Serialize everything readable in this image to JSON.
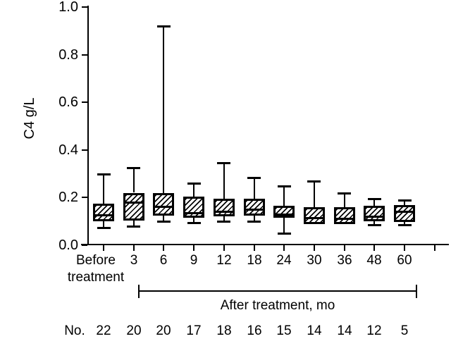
{
  "figure": {
    "background": "#ffffff",
    "ink_color": "#000000"
  },
  "chart_data": {
    "type": "boxplot",
    "title": "",
    "xlabel": "",
    "ylabel": "C4 g/L",
    "ylim": [
      0.0,
      1.0
    ],
    "yticks": [
      0.0,
      0.2,
      0.4,
      0.6,
      0.8,
      1.0
    ],
    "ytick_decimals": 1,
    "grid": false,
    "box_fill": "diagonal-hatch",
    "categories": [
      [
        "Before",
        "treatment"
      ],
      [
        "3"
      ],
      [
        "6"
      ],
      [
        "9"
      ],
      [
        "12"
      ],
      [
        "18"
      ],
      [
        "24"
      ],
      [
        "30"
      ],
      [
        "36"
      ],
      [
        "48"
      ],
      [
        "60"
      ]
    ],
    "x_axis": {
      "extra_end_tick": true
    },
    "group_bracket": {
      "label": "After treatment, mo",
      "from_category_index": 1,
      "to_category_index": 10
    },
    "counts": {
      "label": "No.",
      "values": [
        22,
        20,
        20,
        17,
        18,
        16,
        15,
        14,
        14,
        12,
        5
      ]
    },
    "boxes": [
      {
        "label": "Before treatment",
        "n": 22,
        "whisker_low": 0.075,
        "q1": 0.1,
        "median": 0.125,
        "q3": 0.175,
        "whisker_high": 0.3
      },
      {
        "label": "3",
        "n": 20,
        "whisker_low": 0.08,
        "q1": 0.105,
        "median": 0.18,
        "q3": 0.22,
        "whisker_high": 0.325
      },
      {
        "label": "6",
        "n": 20,
        "whisker_low": 0.1,
        "q1": 0.125,
        "median": 0.16,
        "q3": 0.22,
        "whisker_high": 0.92
      },
      {
        "label": "9",
        "n": 17,
        "whisker_low": 0.095,
        "q1": 0.115,
        "median": 0.135,
        "q3": 0.205,
        "whisker_high": 0.26
      },
      {
        "label": "12",
        "n": 18,
        "whisker_low": 0.1,
        "q1": 0.12,
        "median": 0.14,
        "q3": 0.195,
        "whisker_high": 0.345
      },
      {
        "label": "18",
        "n": 16,
        "whisker_low": 0.1,
        "q1": 0.125,
        "median": 0.15,
        "q3": 0.195,
        "whisker_high": 0.285
      },
      {
        "label": "24",
        "n": 15,
        "whisker_low": 0.05,
        "q1": 0.115,
        "median": 0.13,
        "q3": 0.165,
        "whisker_high": 0.25
      },
      {
        "label": "30",
        "n": 14,
        "whisker_low": 0.09,
        "q1": 0.09,
        "median": 0.115,
        "q3": 0.16,
        "whisker_high": 0.27
      },
      {
        "label": "36",
        "n": 14,
        "whisker_low": 0.09,
        "q1": 0.09,
        "median": 0.11,
        "q3": 0.16,
        "whisker_high": 0.22
      },
      {
        "label": "48",
        "n": 12,
        "whisker_low": 0.085,
        "q1": 0.1,
        "median": 0.12,
        "q3": 0.165,
        "whisker_high": 0.195
      },
      {
        "label": "60",
        "n": 5,
        "whisker_low": 0.085,
        "q1": 0.1,
        "median": 0.14,
        "q3": 0.17,
        "whisker_high": 0.19
      }
    ]
  }
}
